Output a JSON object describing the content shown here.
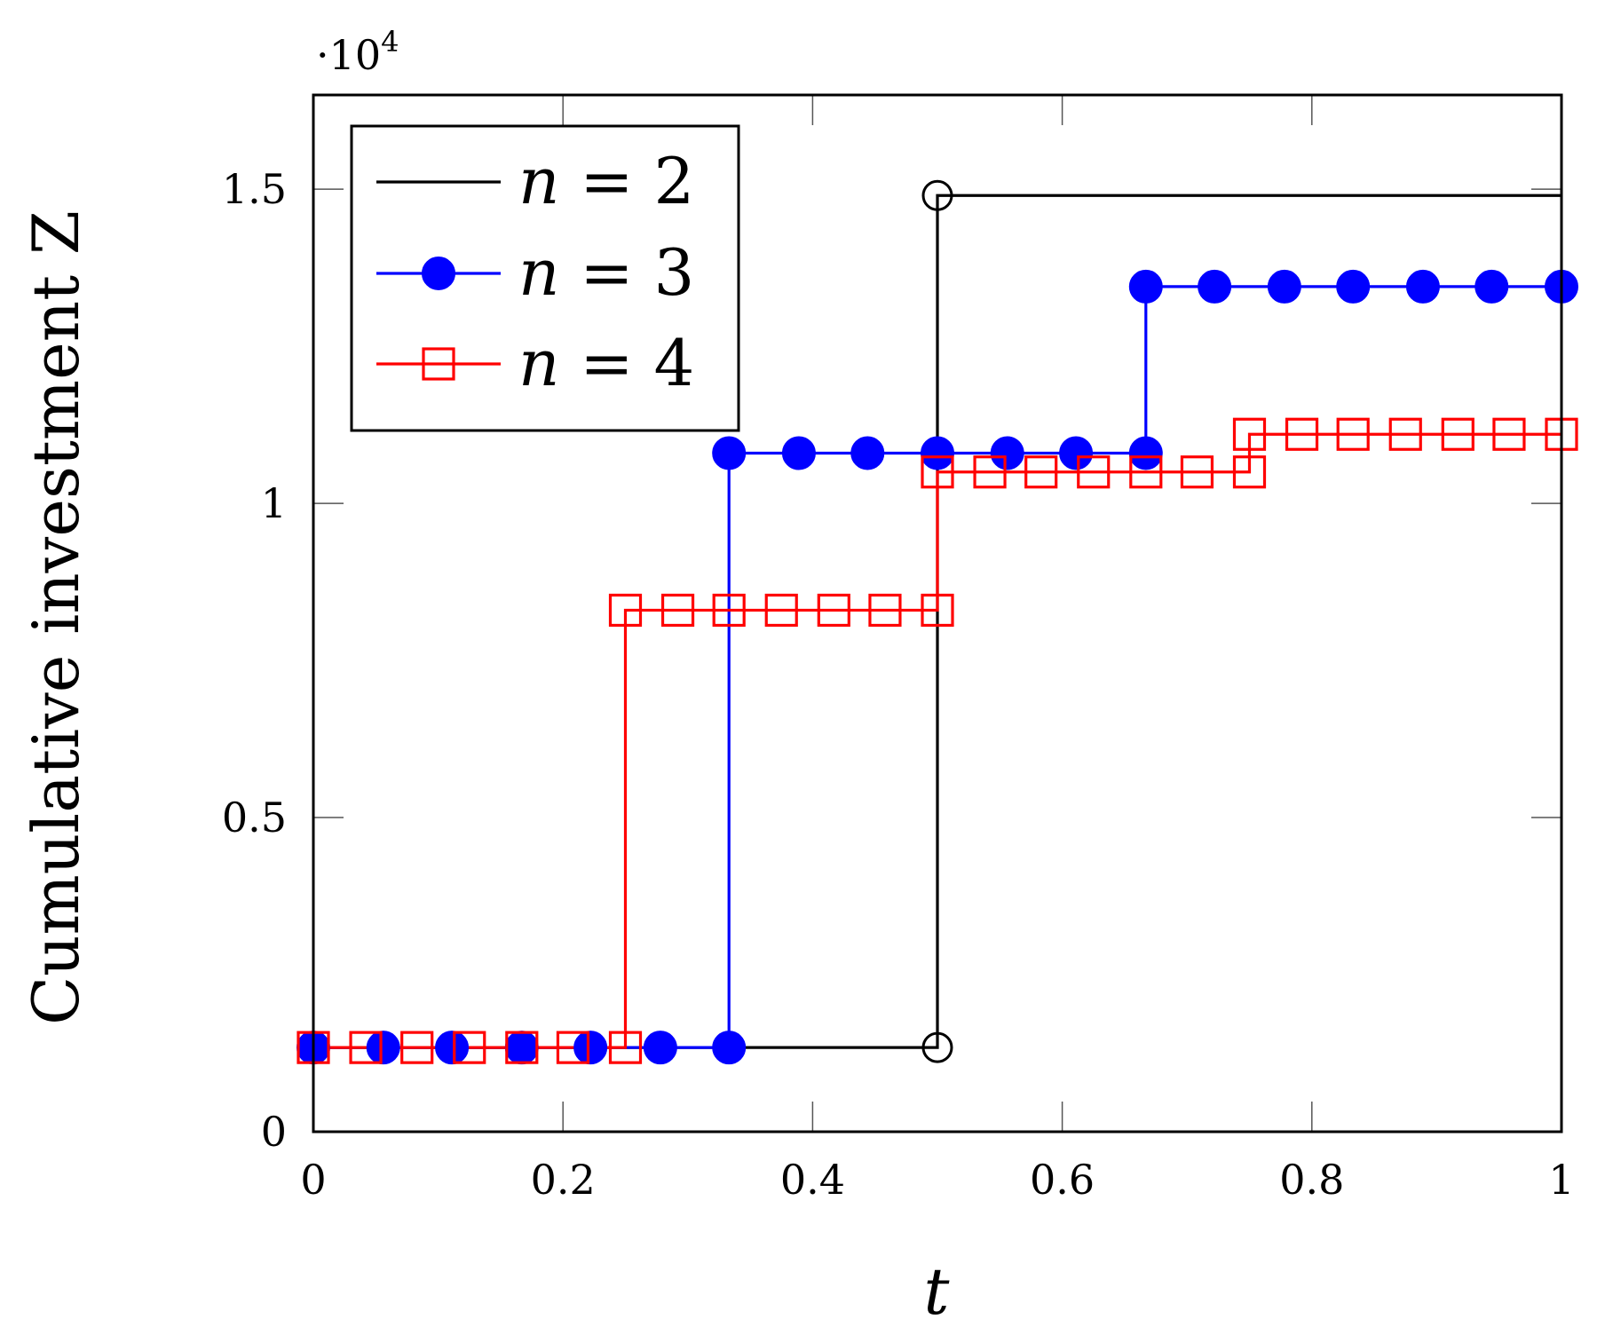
{
  "chart_data": {
    "type": "line",
    "xlabel": "t",
    "ylabel": "Cumulative investment Z",
    "y_multiplier": "·10",
    "y_multiplier_exponent": "4",
    "xlim": [
      0,
      1
    ],
    "ylim": [
      0,
      1.65
    ],
    "x_ticks": [
      "0",
      "0.2",
      "0.4",
      "0.6",
      "0.8",
      "1"
    ],
    "y_ticks": [
      "0",
      "0.5",
      "1",
      "1.5"
    ],
    "legend_position": "top-left",
    "grid": false,
    "series": [
      {
        "name": "n = 2",
        "legend_var": "n",
        "legend_value": "2",
        "color": "#000000",
        "marker": "open-circle",
        "step_x": [
          0,
          0.5,
          0.5,
          1.0
        ],
        "step_y": [
          0.134,
          0.134,
          1.49,
          1.49
        ],
        "marker_x": [
          0.5,
          0.5
        ],
        "marker_y": [
          0.134,
          1.49
        ]
      },
      {
        "name": "n = 3",
        "legend_var": "n",
        "legend_value": "3",
        "color": "#0000ff",
        "marker": "filled-circle",
        "step_x": [
          0,
          0.333,
          0.333,
          0.667,
          0.667,
          1.0
        ],
        "step_y": [
          0.134,
          0.134,
          1.08,
          1.08,
          1.345,
          1.345
        ],
        "marker_x": [
          0,
          0.056,
          0.111,
          0.167,
          0.222,
          0.278,
          0.333,
          0.333,
          0.389,
          0.444,
          0.5,
          0.556,
          0.611,
          0.667,
          0.667,
          0.722,
          0.778,
          0.833,
          0.889,
          0.944,
          1.0
        ],
        "marker_y": [
          0.134,
          0.134,
          0.134,
          0.134,
          0.134,
          0.134,
          0.134,
          1.08,
          1.08,
          1.08,
          1.08,
          1.08,
          1.08,
          1.08,
          1.345,
          1.345,
          1.345,
          1.345,
          1.345,
          1.345,
          1.345
        ]
      },
      {
        "name": "n = 4",
        "legend_var": "n",
        "legend_value": "4",
        "color": "#ff0000",
        "marker": "open-square",
        "step_x": [
          0,
          0.25,
          0.25,
          0.5,
          0.5,
          0.75,
          0.75,
          1.0
        ],
        "step_y": [
          0.134,
          0.134,
          0.83,
          0.83,
          1.05,
          1.05,
          1.11,
          1.11
        ],
        "marker_x": [
          0,
          0.042,
          0.083,
          0.125,
          0.167,
          0.208,
          0.25,
          0.25,
          0.292,
          0.333,
          0.375,
          0.417,
          0.458,
          0.5,
          0.5,
          0.542,
          0.583,
          0.625,
          0.667,
          0.708,
          0.75,
          0.75,
          0.792,
          0.833,
          0.875,
          0.917,
          0.958,
          1.0
        ],
        "marker_y": [
          0.134,
          0.134,
          0.134,
          0.134,
          0.134,
          0.134,
          0.134,
          0.83,
          0.83,
          0.83,
          0.83,
          0.83,
          0.83,
          0.83,
          1.05,
          1.05,
          1.05,
          1.05,
          1.05,
          1.05,
          1.05,
          1.11,
          1.11,
          1.11,
          1.11,
          1.11,
          1.11,
          1.11
        ]
      }
    ]
  }
}
